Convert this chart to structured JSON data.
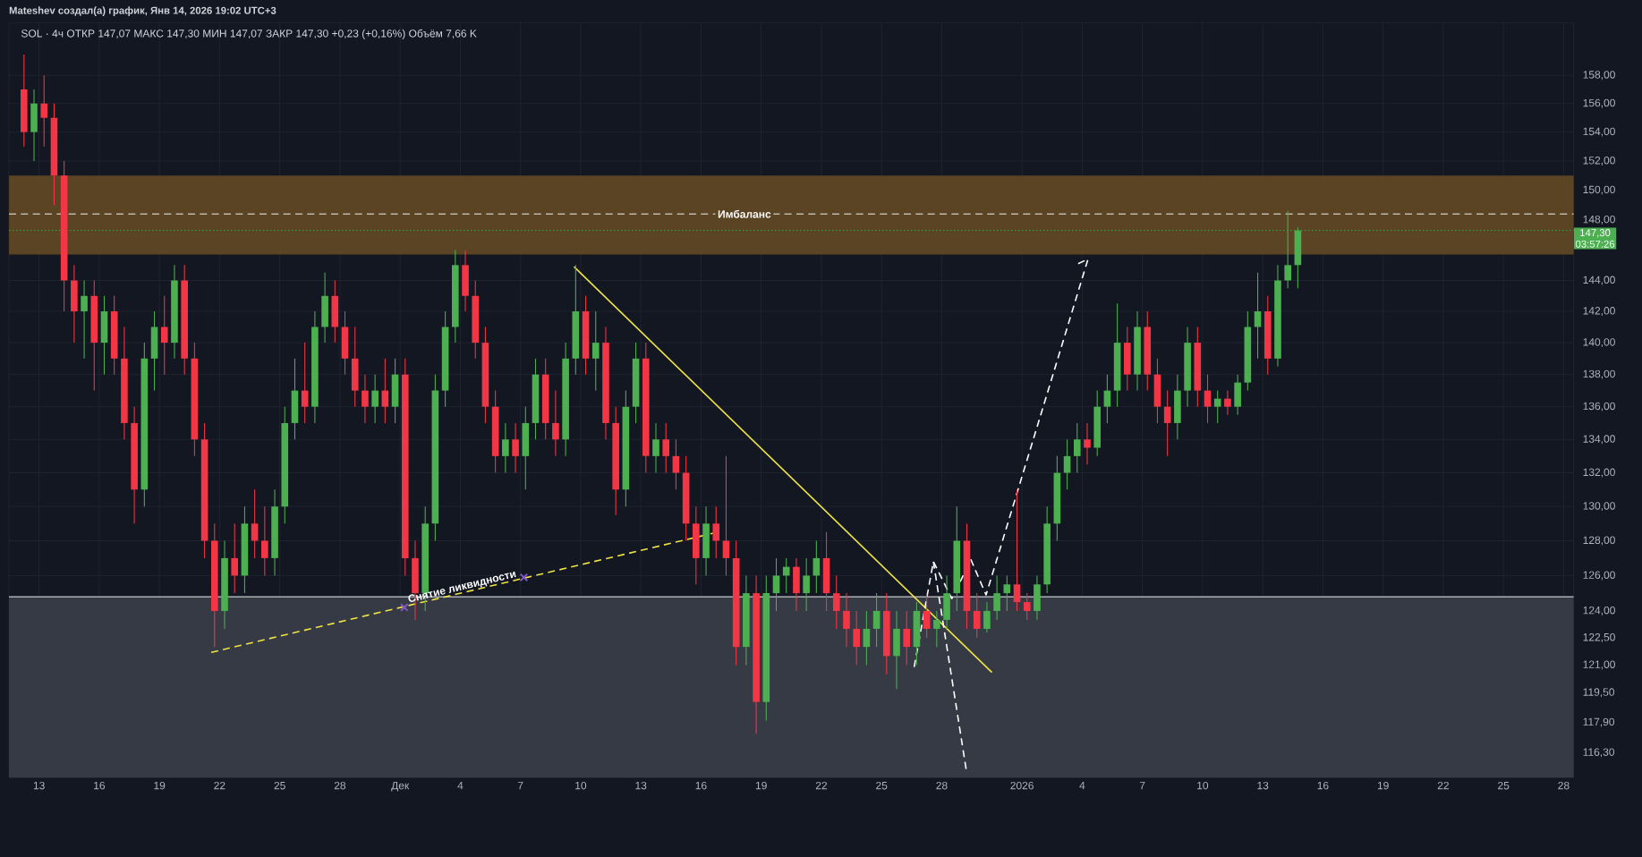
{
  "chart_data": {
    "type": "candlestick",
    "title": "Mateshev создал(а) график, Янв 14, 2026 19:02 UTC+3",
    "subtitle": "SOL · 4ч   ОТКР 147,07  МАКС 147,30  МИН 147,07  ЗАКР 147,30  +0,23 (+0,16%)  Объём 7,66 K",
    "x": [
      "2025-11-12T06:00",
      "2025-11-12T18:00",
      "2025-11-13T06:00",
      "2025-11-13T18:00",
      "2025-11-14T06:00",
      "2025-11-14T18:00",
      "2025-11-15T06:00",
      "2025-11-15T18:00",
      "2025-11-16T06:00",
      "2025-11-16T18:00",
      "2025-11-17T06:00",
      "2025-11-17T18:00",
      "2025-11-18T06:00",
      "2025-11-18T18:00",
      "2025-11-19T06:00",
      "2025-11-19T18:00",
      "2025-11-20T06:00",
      "2025-11-20T18:00",
      "2025-11-21T06:00",
      "2025-11-21T18:00",
      "2025-11-22T06:00",
      "2025-11-22T18:00",
      "2025-11-23T06:00",
      "2025-11-23T18:00",
      "2025-11-24T06:00",
      "2025-11-24T18:00",
      "2025-11-25T06:00",
      "2025-11-25T18:00",
      "2025-11-26T06:00",
      "2025-11-26T18:00",
      "2025-11-27T06:00",
      "2025-11-27T18:00",
      "2025-11-28T06:00",
      "2025-11-28T18:00",
      "2025-11-29T06:00",
      "2025-11-29T18:00",
      "2025-11-30T06:00",
      "2025-11-30T18:00",
      "2025-12-01T06:00",
      "2025-12-01T18:00",
      "2025-12-02T06:00",
      "2025-12-02T18:00",
      "2025-12-03T06:00",
      "2025-12-03T18:00",
      "2025-12-04T06:00",
      "2025-12-04T18:00",
      "2025-12-05T06:00",
      "2025-12-05T18:00",
      "2025-12-06T06:00",
      "2025-12-06T18:00",
      "2025-12-07T06:00",
      "2025-12-07T18:00",
      "2025-12-08T06:00",
      "2025-12-08T18:00",
      "2025-12-09T06:00",
      "2025-12-09T18:00",
      "2025-12-10T06:00",
      "2025-12-10T18:00",
      "2025-12-11T06:00",
      "2025-12-11T18:00",
      "2025-12-12T06:00",
      "2025-12-12T18:00",
      "2025-12-13T06:00",
      "2025-12-13T18:00",
      "2025-12-14T06:00",
      "2025-12-14T18:00",
      "2025-12-15T06:00",
      "2025-12-15T18:00",
      "2025-12-16T06:00",
      "2025-12-16T18:00",
      "2025-12-17T06:00",
      "2025-12-17T18:00",
      "2025-12-18T06:00",
      "2025-12-18T18:00",
      "2025-12-19T06:00",
      "2025-12-19T18:00",
      "2025-12-20T06:00",
      "2025-12-20T18:00",
      "2025-12-21T06:00",
      "2025-12-21T18:00",
      "2025-12-22T06:00",
      "2025-12-22T18:00",
      "2025-12-23T06:00",
      "2025-12-23T18:00",
      "2025-12-24T06:00",
      "2025-12-24T18:00",
      "2025-12-25T06:00",
      "2025-12-25T18:00",
      "2025-12-26T06:00",
      "2025-12-26T18:00",
      "2025-12-27T06:00",
      "2025-12-27T18:00",
      "2025-12-28T06:00",
      "2025-12-28T18:00",
      "2025-12-29T06:00",
      "2025-12-29T18:00",
      "2025-12-30T06:00",
      "2025-12-30T18:00",
      "2025-12-31T06:00",
      "2025-12-31T18:00",
      "2026-01-01T06:00",
      "2026-01-01T18:00",
      "2026-01-02T06:00",
      "2026-01-02T18:00",
      "2026-01-03T06:00",
      "2026-01-03T18:00",
      "2026-01-04T06:00",
      "2026-01-04T18:00",
      "2026-01-05T06:00",
      "2026-01-05T18:00",
      "2026-01-06T06:00",
      "2026-01-06T18:00",
      "2026-01-07T06:00",
      "2026-01-07T18:00",
      "2026-01-08T06:00",
      "2026-01-08T18:00",
      "2026-01-09T06:00",
      "2026-01-09T18:00",
      "2026-01-10T06:00",
      "2026-01-10T18:00",
      "2026-01-11T06:00",
      "2026-01-11T18:00",
      "2026-01-12T06:00",
      "2026-01-12T18:00",
      "2026-01-13T06:00",
      "2026-01-13T18:00",
      "2026-01-14T06:00",
      "2026-01-14T18:00"
    ],
    "ohlc": [
      [
        157,
        159.5,
        153,
        154
      ],
      [
        154,
        157,
        152,
        156
      ],
      [
        156,
        158,
        153,
        155
      ],
      [
        155,
        156,
        149,
        151
      ],
      [
        151,
        152,
        142,
        144
      ],
      [
        144,
        145,
        140,
        142
      ],
      [
        142,
        144,
        139,
        143
      ],
      [
        143,
        144,
        137,
        140
      ],
      [
        140,
        143,
        138,
        142
      ],
      [
        142,
        143,
        138,
        139
      ],
      [
        139,
        141,
        134,
        135
      ],
      [
        135,
        136,
        129,
        131
      ],
      [
        131,
        140,
        130,
        139
      ],
      [
        139,
        142,
        137,
        141
      ],
      [
        141,
        143,
        138,
        140
      ],
      [
        140,
        145,
        139,
        144
      ],
      [
        144,
        145,
        138,
        139
      ],
      [
        139,
        140,
        133,
        134
      ],
      [
        134,
        135,
        127,
        128
      ],
      [
        128,
        129,
        122,
        124
      ],
      [
        124,
        128,
        123,
        127
      ],
      [
        127,
        129,
        125,
        126
      ],
      [
        126,
        130,
        125,
        129
      ],
      [
        129,
        131,
        127,
        128
      ],
      [
        128,
        130,
        126,
        127
      ],
      [
        127,
        131,
        126,
        130
      ],
      [
        130,
        136,
        129,
        135
      ],
      [
        135,
        139,
        134,
        137
      ],
      [
        137,
        140,
        135,
        136
      ],
      [
        136,
        142,
        135,
        141
      ],
      [
        141,
        144.5,
        140,
        143
      ],
      [
        143,
        144,
        140,
        141
      ],
      [
        141,
        142,
        138,
        139
      ],
      [
        139,
        141,
        136,
        137
      ],
      [
        137,
        138,
        135,
        136
      ],
      [
        136,
        138,
        135,
        137
      ],
      [
        137,
        139,
        135,
        136
      ],
      [
        136,
        139,
        135,
        138
      ],
      [
        138,
        139,
        126,
        127
      ],
      [
        127,
        128,
        123.5,
        125
      ],
      [
        125,
        130,
        124,
        129
      ],
      [
        129,
        138,
        128,
        137
      ],
      [
        137,
        142,
        136,
        141
      ],
      [
        141,
        146,
        140,
        145
      ],
      [
        145,
        146,
        142,
        143
      ],
      [
        143,
        144,
        139,
        140
      ],
      [
        140,
        141,
        135,
        136
      ],
      [
        136,
        137,
        132,
        133
      ],
      [
        133,
        135,
        132,
        134
      ],
      [
        134,
        135,
        132,
        133
      ],
      [
        133,
        136,
        131,
        135
      ],
      [
        135,
        139,
        134,
        138
      ],
      [
        138,
        139,
        134,
        135
      ],
      [
        135,
        137,
        133,
        134
      ],
      [
        134,
        140,
        133,
        139
      ],
      [
        139,
        145,
        138,
        142
      ],
      [
        142,
        143,
        138,
        139
      ],
      [
        139,
        142,
        137,
        140
      ],
      [
        140,
        141,
        134,
        135
      ],
      [
        135,
        136,
        129.5,
        131
      ],
      [
        131,
        137,
        130,
        136
      ],
      [
        136,
        140,
        135,
        139
      ],
      [
        139,
        140,
        132,
        133
      ],
      [
        133,
        135,
        132,
        134
      ],
      [
        134,
        135,
        132,
        133
      ],
      [
        133,
        134,
        131,
        132
      ],
      [
        132,
        133,
        128,
        129
      ],
      [
        129,
        130,
        125.5,
        127
      ],
      [
        127,
        130,
        126,
        129
      ],
      [
        129,
        130,
        127,
        128
      ],
      [
        128,
        133,
        126,
        127
      ],
      [
        127,
        128,
        121,
        122
      ],
      [
        122,
        126,
        121,
        125
      ],
      [
        125,
        126,
        117.3,
        119
      ],
      [
        119,
        126,
        118,
        125
      ],
      [
        125,
        127,
        124,
        126
      ],
      [
        126,
        127,
        125,
        126.5
      ],
      [
        126.5,
        127,
        124,
        125
      ],
      [
        125,
        127,
        124,
        126
      ],
      [
        126,
        128,
        125,
        127
      ],
      [
        127,
        128.5,
        124,
        125
      ],
      [
        125,
        126,
        123,
        124
      ],
      [
        124,
        125,
        122,
        123
      ],
      [
        123,
        124,
        121,
        122
      ],
      [
        122,
        124,
        121,
        123
      ],
      [
        123,
        125,
        122,
        124
      ],
      [
        124,
        125,
        120.5,
        121.5
      ],
      [
        121.5,
        124,
        119.7,
        123
      ],
      [
        123,
        124,
        121,
        122
      ],
      [
        122,
        124.5,
        121,
        124
      ],
      [
        124,
        125,
        122.5,
        123
      ],
      [
        123,
        124,
        122,
        123.5
      ],
      [
        123.5,
        126,
        123,
        125
      ],
      [
        125,
        130,
        124,
        128
      ],
      [
        128,
        129,
        123,
        124
      ],
      [
        124,
        125,
        122.5,
        123
      ],
      [
        123,
        124.5,
        122.8,
        124
      ],
      [
        124,
        126,
        123.5,
        125
      ],
      [
        125,
        126,
        124,
        125.5
      ],
      [
        125.5,
        131,
        124,
        124.5
      ],
      [
        124.5,
        125,
        123.5,
        124
      ],
      [
        124,
        126,
        123.5,
        125.5
      ],
      [
        125.5,
        130,
        125,
        129
      ],
      [
        129,
        133,
        128,
        132
      ],
      [
        132,
        134,
        131,
        133
      ],
      [
        133,
        135,
        132,
        134
      ],
      [
        134,
        135,
        132.5,
        133.5
      ],
      [
        133.5,
        137,
        133,
        136
      ],
      [
        136,
        138,
        135,
        137
      ],
      [
        137,
        142.5,
        136,
        140
      ],
      [
        140,
        141,
        137,
        138
      ],
      [
        138,
        142,
        137,
        141
      ],
      [
        141,
        142,
        137,
        138
      ],
      [
        138,
        139,
        135,
        136
      ],
      [
        136,
        137,
        133,
        135
      ],
      [
        135,
        138,
        134,
        137
      ],
      [
        137,
        141,
        136,
        140
      ],
      [
        140,
        141,
        136,
        137
      ],
      [
        137,
        138,
        135,
        136
      ],
      [
        136,
        137,
        135,
        136.5
      ],
      [
        136.5,
        137,
        135.5,
        136
      ],
      [
        136,
        138,
        135.5,
        137.5
      ],
      [
        137.5,
        142,
        137,
        141
      ],
      [
        141,
        144.5,
        139,
        142
      ],
      [
        142,
        143,
        138,
        139
      ],
      [
        139,
        145,
        138.5,
        144
      ],
      [
        144,
        148.6,
        143.5,
        145
      ],
      [
        145,
        147.5,
        143.5,
        147.3
      ]
    ],
    "colors": [
      "#f23645",
      "#4caf50",
      "#f23645",
      "#f23645",
      "#f23645",
      "#f23645",
      "#4caf50",
      "#f23645",
      "#4caf50",
      "#f23645",
      "#f23645",
      "#f23645",
      "#4caf50",
      "#4caf50",
      "#f23645",
      "#4caf50",
      "#f23645",
      "#f23645",
      "#f23645",
      "#f23645",
      "#4caf50",
      "#f23645",
      "#4caf50",
      "#f23645",
      "#f23645",
      "#4caf50",
      "#4caf50",
      "#4caf50",
      "#f23645",
      "#4caf50",
      "#4caf50",
      "#f23645",
      "#f23645",
      "#f23645",
      "#f23645",
      "#4caf50",
      "#f23645",
      "#4caf50",
      "#f23645",
      "#f23645",
      "#4caf50",
      "#4caf50",
      "#4caf50",
      "#4caf50",
      "#f23645",
      "#f23645",
      "#f23645",
      "#f23645",
      "#4caf50",
      "#f23645",
      "#4caf50",
      "#4caf50",
      "#f23645",
      "#f23645",
      "#4caf50",
      "#4caf50",
      "#f23645",
      "#4caf50",
      "#f23645",
      "#f23645",
      "#4caf50",
      "#4caf50",
      "#f23645",
      "#4caf50",
      "#f23645",
      "#f23645",
      "#f23645",
      "#f23645",
      "#4caf50",
      "#f23645",
      "#f23645",
      "#f23645",
      "#4caf50",
      "#f23645",
      "#4caf50",
      "#4caf50",
      "#4caf50",
      "#f23645",
      "#4caf50",
      "#4caf50",
      "#f23645",
      "#f23645",
      "#f23645",
      "#f23645",
      "#4caf50",
      "#4caf50",
      "#f23645",
      "#4caf50",
      "#f23645",
      "#4caf50",
      "#f23645",
      "#4caf50",
      "#4caf50",
      "#4caf50",
      "#f23645",
      "#f23645",
      "#4caf50",
      "#4caf50",
      "#4caf50",
      "#f23645",
      "#f23645",
      "#4caf50",
      "#4caf50",
      "#4caf50",
      "#4caf50",
      "#4caf50",
      "#f23645",
      "#4caf50",
      "#4caf50",
      "#4caf50",
      "#f23645",
      "#4caf50",
      "#f23645",
      "#f23645",
      "#f23645",
      "#4caf50",
      "#4caf50",
      "#f23645",
      "#f23645",
      "#4caf50",
      "#f23645",
      "#4caf50",
      "#4caf50",
      "#4caf50",
      "#f23645",
      "#4caf50",
      "#4caf50",
      "#4caf50"
    ],
    "series": [
      {
        "type": "line",
        "color": "#f0e442",
        "line_style": "solid",
        "x": [
          "2025-12-09T16:00",
          "2025-12-30T12:00"
        ],
        "values": [
          144.9,
          120.6
        ]
      },
      {
        "type": "line",
        "color": "#f0e442",
        "line_style": "dashed",
        "x": [
          "2025-11-21T14:00",
          "2025-12-16T20:00"
        ],
        "values": [
          121.7,
          128.5
        ]
      },
      {
        "type": "line",
        "color": "#ffffff",
        "line_style": "dashed",
        "x": [
          "2025-12-26T15:00",
          "2025-12-27T14:00",
          "2025-12-28T12:00",
          "2025-12-29T11:00",
          "2025-12-30T05:00",
          "2026-01-04T07:00",
          "2026-01-03T19:00"
        ],
        "values": [
          120.9,
          126.8,
          124.7,
          126.9,
          124.9,
          145.4,
          145.1
        ]
      },
      {
        "type": "line",
        "color": "#ffffff",
        "line_style": "dashed",
        "x": [
          "2025-12-27T14:00",
          "2025-12-29T06:00"
        ],
        "values": [
          126.8,
          115.2
        ]
      },
      {
        "type": "scatter",
        "color": "#7e57c2",
        "marker": "cross",
        "x": [
          "2025-12-01T05:00",
          "2025-12-07T04:00"
        ],
        "values": [
          124.2,
          125.9
        ]
      }
    ],
    "xlim": [
      "2025-11-11T12:00",
      "2026-01-28T12:00"
    ],
    "xticks": [
      {
        "value": "2025-11-13",
        "label": "13"
      },
      {
        "value": "2025-11-16",
        "label": "16"
      },
      {
        "value": "2025-11-19",
        "label": "19"
      },
      {
        "value": "2025-11-22",
        "label": "22"
      },
      {
        "value": "2025-11-25",
        "label": "25"
      },
      {
        "value": "2025-11-28",
        "label": "28"
      },
      {
        "value": "2025-12-01",
        "label": "Дек"
      },
      {
        "value": "2025-12-04",
        "label": "4"
      },
      {
        "value": "2025-12-07",
        "label": "7"
      },
      {
        "value": "2025-12-10",
        "label": "10"
      },
      {
        "value": "2025-12-13",
        "label": "13"
      },
      {
        "value": "2025-12-16",
        "label": "16"
      },
      {
        "value": "2025-12-19",
        "label": "19"
      },
      {
        "value": "2025-12-22",
        "label": "22"
      },
      {
        "value": "2025-12-25",
        "label": "25"
      },
      {
        "value": "2025-12-28",
        "label": "28"
      },
      {
        "value": "2026-01-01",
        "label": "2026"
      },
      {
        "value": "2026-01-04",
        "label": "4"
      },
      {
        "value": "2026-01-07",
        "label": "7"
      },
      {
        "value": "2026-01-10",
        "label": "10"
      },
      {
        "value": "2026-01-13",
        "label": "13"
      },
      {
        "value": "2026-01-16",
        "label": "16"
      },
      {
        "value": "2026-01-19",
        "label": "19"
      },
      {
        "value": "2026-01-22",
        "label": "22"
      },
      {
        "value": "2026-01-25",
        "label": "25"
      },
      {
        "value": "2026-01-28",
        "label": "28"
      }
    ],
    "ylim": [
      115.0,
      161.8
    ],
    "yticks": [
      {
        "value": 116.3,
        "label": "116,30"
      },
      {
        "value": 117.9,
        "label": "117,90"
      },
      {
        "value": 119.5,
        "label": "119,50"
      },
      {
        "value": 121,
        "label": "121,00"
      },
      {
        "value": 122.5,
        "label": "122,50"
      },
      {
        "value": 124,
        "label": "124,00"
      },
      {
        "value": 126,
        "label": "126,00"
      },
      {
        "value": 128,
        "label": "128,00"
      },
      {
        "value": 130,
        "label": "130,00"
      },
      {
        "value": 132,
        "label": "132,00"
      },
      {
        "value": 134,
        "label": "134,00"
      },
      {
        "value": 136,
        "label": "136,00"
      },
      {
        "value": 138,
        "label": "138,00"
      },
      {
        "value": 140,
        "label": "140,00"
      },
      {
        "value": 142,
        "label": "142,00"
      },
      {
        "value": 144,
        "label": "144,00"
      },
      {
        "value": 146,
        "label": null
      },
      {
        "value": 148,
        "label": "148,00"
      },
      {
        "value": 150,
        "label": "150,00"
      },
      {
        "value": 152,
        "label": "152,00"
      },
      {
        "value": 154,
        "label": "154,00"
      },
      {
        "value": 156,
        "label": "156,00"
      },
      {
        "value": 158,
        "label": "158,00"
      }
    ],
    "log": true,
    "grid": true,
    "bands": [
      {
        "axis": "y",
        "from": 145.7,
        "to": 151.0,
        "color": "#5b4423"
      },
      {
        "axis": "y",
        "from": 115.0,
        "to": 124.8,
        "color": "#363a45"
      }
    ],
    "ref_lines": [
      {
        "axis": "y",
        "value": 148.4,
        "label": "Имбаланс",
        "color": "#ffffff",
        "line_style": "dashed"
      },
      {
        "axis": "y",
        "value": 147.3,
        "label": "147,30",
        "color": "#4caf50",
        "line_style": "dotted"
      },
      {
        "axis": "y",
        "value": 124.8,
        "color": "#ffffff",
        "line_style": "solid"
      }
    ],
    "annotations": [
      {
        "text": "Снятие ликвидности",
        "x": "2025-12-04T04:00",
        "y": 125.0
      },
      "03:57:26"
    ]
  }
}
